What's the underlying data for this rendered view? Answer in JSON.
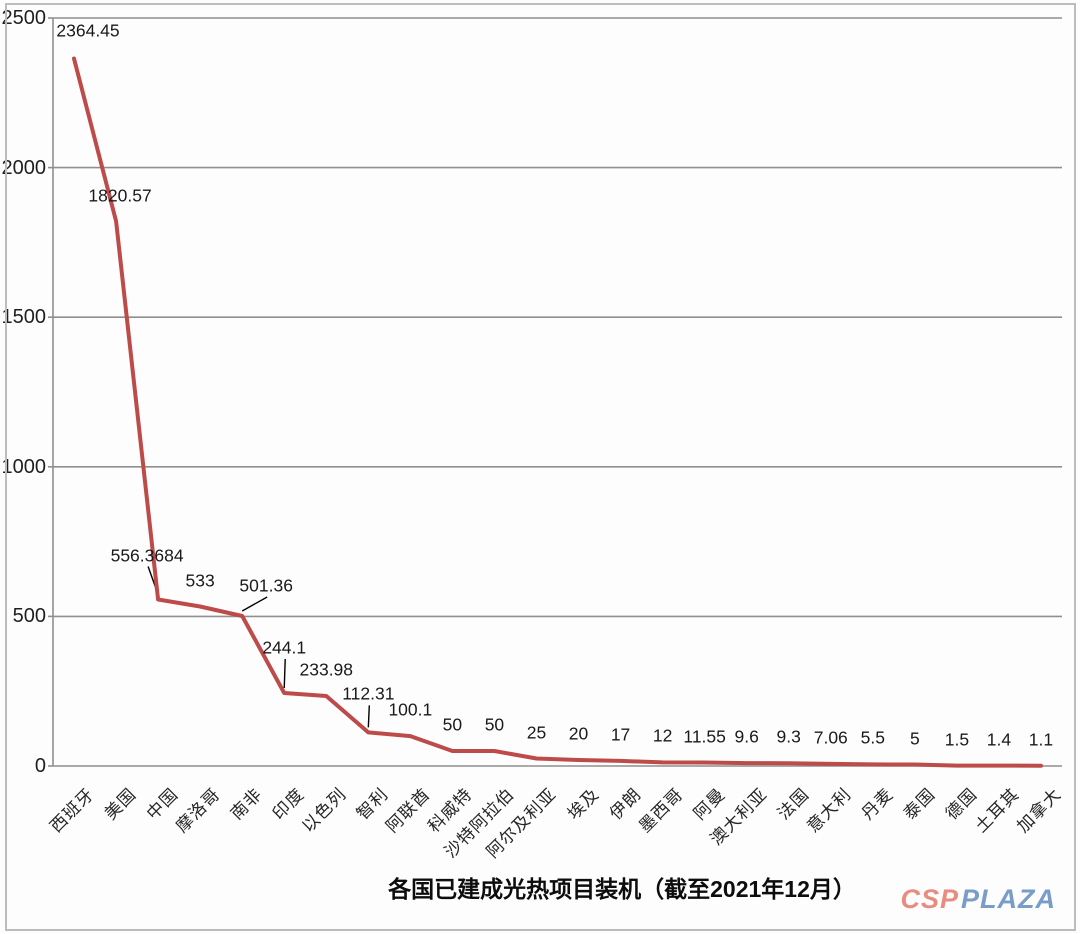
{
  "chart_data": {
    "type": "line",
    "title": "各国已建成光热项目装机（截至2021年12月）",
    "categories": [
      "西班牙",
      "美国",
      "中国",
      "摩洛哥",
      "南非",
      "印度",
      "以色列",
      "智利",
      "阿联酋",
      "科威特",
      "沙特阿拉伯",
      "阿尔及利亚",
      "埃及",
      "伊朗",
      "墨西哥",
      "阿曼",
      "澳大利亚",
      "法国",
      "意大利",
      "丹麦",
      "泰国",
      "德国",
      "土耳其",
      "加拿大"
    ],
    "values": [
      2364.45,
      1820.57,
      556.3684,
      533,
      501.36,
      244.1,
      233.98,
      112.31,
      100.1,
      50,
      50,
      25,
      20,
      17,
      12,
      11.55,
      9.6,
      9.3,
      7.06,
      5.5,
      5,
      1.5,
      1.4,
      1.1
    ],
    "point_labels": [
      "2364.45",
      "1820.57",
      "556.3684",
      "533",
      "501.36",
      "244.1",
      "233.98",
      "112.31",
      "100.1",
      "50",
      "50",
      "25",
      "20",
      "17",
      "12",
      "11.55",
      "9.6",
      "9.3",
      "7.06",
      "5.5",
      "5",
      "1.5",
      "1.4",
      "1.1"
    ],
    "xlabel": "",
    "ylabel": "",
    "ylim": [
      0,
      2500
    ],
    "yticks": [
      0,
      500,
      1000,
      1500,
      2000,
      2500
    ],
    "ytick_labels": [
      "0",
      "500",
      "1000",
      "1500",
      "2000",
      "2500"
    ],
    "grid": true,
    "legend": "none",
    "line_color": "#bd4b49",
    "axis_color": "#8f8f8f",
    "leader_color": "#000000"
  },
  "watermark": {
    "csp": "CSP",
    "plaza": "PLAZA",
    "csp_color": "#e98c80",
    "plaza_color": "#7a9cc9"
  }
}
